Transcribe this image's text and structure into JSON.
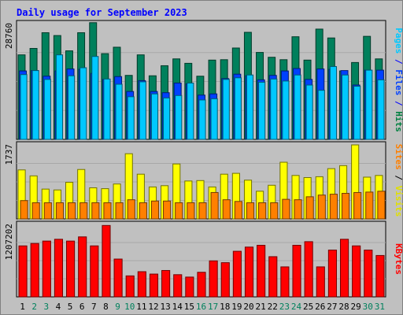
{
  "chart_data": {
    "type": "bar",
    "title": "Daily usage for September 2023",
    "categories": [
      "1",
      "2",
      "3",
      "4",
      "5",
      "6",
      "7",
      "8",
      "9",
      "10",
      "11",
      "12",
      "13",
      "14",
      "15",
      "16",
      "17",
      "18",
      "19",
      "20",
      "21",
      "22",
      "23",
      "24",
      "25",
      "26",
      "27",
      "28",
      "29",
      "30",
      "31"
    ],
    "weekend_days": [
      "2",
      "3",
      "9",
      "10",
      "16",
      "17",
      "23",
      "24",
      "30",
      "31"
    ],
    "panels": [
      {
        "name": "hits-files-pages",
        "max_label": "28760",
        "ylim": [
          0,
          28760
        ],
        "label_parts": [
          {
            "text": "Pages",
            "color": "#00c8ff"
          },
          {
            "text": " / ",
            "color": "#0000ff"
          },
          {
            "text": "Files",
            "color": "#0040ff"
          },
          {
            "text": " / ",
            "color": "#0000ff"
          },
          {
            "text": "Hits",
            "color": "#008040"
          }
        ],
        "series": [
          {
            "name": "Hits",
            "color": "#00805c",
            "values": [
              21000,
              22600,
              26500,
              25800,
              22000,
              26500,
              29000,
              21300,
              22900,
              15900,
              21000,
              15800,
              18300,
              20000,
              18900,
              15700,
              19700,
              19800,
              22700,
              26600,
              21600,
              20400,
              19800,
              25500,
              19700,
              27400,
              25200,
              17000,
              19100,
              25600,
              20000
            ]
          },
          {
            "name": "Files",
            "color": "#0040ff",
            "values": [
              17000,
              17100,
              15700,
              17000,
              17500,
              17400,
              16400,
              14900,
              15600,
              11900,
              14600,
              11900,
              11600,
              14000,
              13800,
              11000,
              11300,
              15100,
              16200,
              15800,
              14800,
              15900,
              17000,
              17600,
              14900,
              17500,
              17400,
              17100,
              13500,
              17200,
              17200
            ]
          },
          {
            "name": "Pages",
            "color": "#00c8ff",
            "values": [
              16100,
              17100,
              14900,
              21000,
              15800,
              17800,
              20600,
              15000,
              13700,
              10600,
              14300,
              11300,
              10300,
              10900,
              14000,
              9800,
              10100,
              14900,
              15300,
              16000,
              14200,
              15000,
              14500,
              16000,
              13500,
              12200,
              18100,
              16000,
              13200,
              17200,
              14800
            ]
          }
        ]
      },
      {
        "name": "visits-sites",
        "max_label": "1737",
        "ylim": [
          0,
          1737
        ],
        "label_parts": [
          {
            "text": "Sites",
            "color": "#ff8000"
          },
          {
            "text": " / ",
            "color": "#000000"
          },
          {
            "text": "Visits",
            "color": "#e0e000"
          }
        ],
        "series": [
          {
            "name": "Visits",
            "color": "#ffff00",
            "values": [
              1150,
              1010,
              700,
              680,
              860,
              1160,
              730,
              710,
              820,
              1530,
              1050,
              750,
              780,
              1290,
              890,
              900,
              750,
              1050,
              1070,
              910,
              650,
              790,
              1330,
              1020,
              970,
              990,
              1180,
              1250,
              1737,
              980,
              1020
            ]
          },
          {
            "name": "Sites",
            "color": "#ff8000",
            "values": [
              430,
              380,
              380,
              380,
              380,
              380,
              380,
              380,
              380,
              450,
              380,
              420,
              420,
              380,
              380,
              380,
              620,
              450,
              410,
              380,
              380,
              380,
              460,
              450,
              520,
              560,
              580,
              600,
              620,
              630,
              650
            ]
          }
        ]
      },
      {
        "name": "kbytes",
        "max_label": "1207202",
        "ylim": [
          0,
          1207202
        ],
        "label_parts": [
          {
            "text": "KBytes",
            "color": "#ff0000"
          }
        ],
        "series": [
          {
            "name": "KBytes",
            "color": "#ff0000",
            "values": [
              850000,
              890000,
              930000,
              960000,
              930000,
              1000000,
              850000,
              1190000,
              630000,
              350000,
              420000,
              380000,
              440000,
              370000,
              330000,
              410000,
              600000,
              570000,
              760000,
              830000,
              860000,
              670000,
              500000,
              860000,
              920000,
              500000,
              780000,
              960000,
              850000,
              780000,
              690000
            ]
          }
        ]
      }
    ],
    "day_label_colors": {
      "weekday": "#000000",
      "weekend": "#00805c"
    }
  },
  "colors": {
    "title": "#0000ff",
    "background": "#c0c0c0",
    "plot_border": "#000000"
  }
}
